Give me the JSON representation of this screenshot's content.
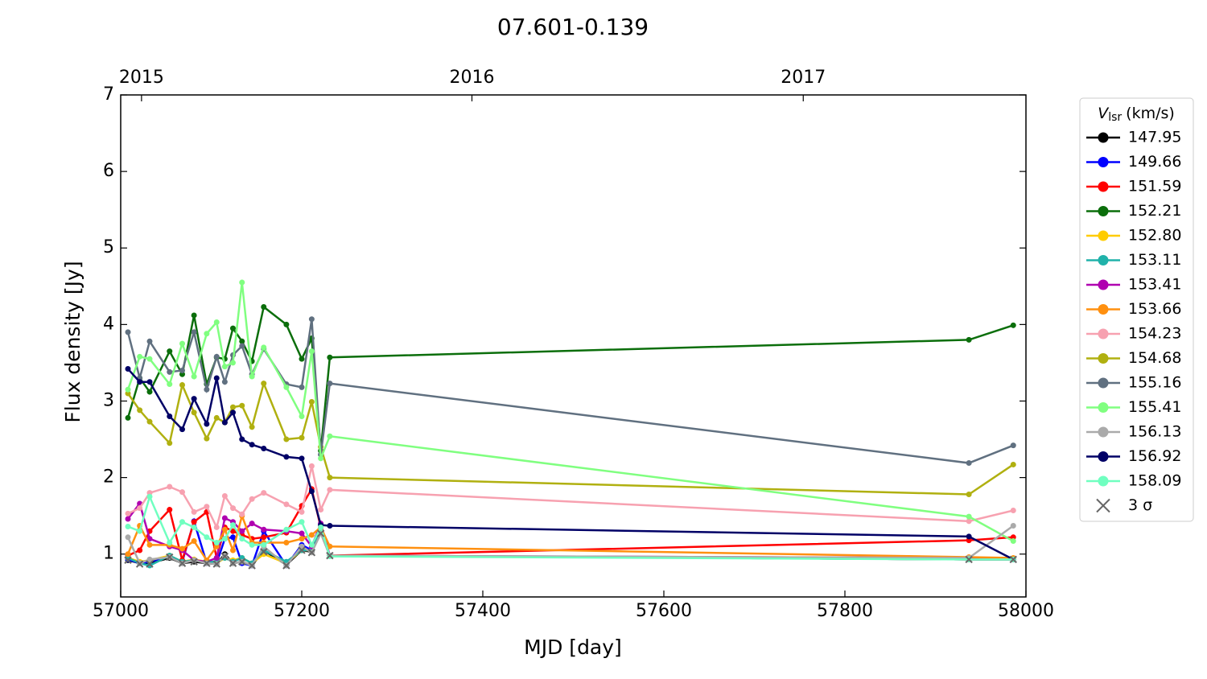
{
  "chart_data": {
    "type": "line",
    "title": "07.601-0.139",
    "xlabel": "MJD [day]",
    "ylabel": "Flux density [Jy]",
    "legend_title": {
      "symbol": "V",
      "subscript": "lsr",
      "unit": "(km/s)"
    },
    "legend": "outside-right",
    "xlim": [
      57000,
      58000
    ],
    "xticks": [
      57000,
      57200,
      57400,
      57600,
      57800,
      58000
    ],
    "ylim": [
      0.44,
      7
    ],
    "yticks": [
      1,
      2,
      3,
      4,
      5,
      6,
      7
    ],
    "x2ticks": [
      {
        "value": 57023,
        "label": "2015"
      },
      {
        "value": 57388,
        "label": "2016"
      },
      {
        "value": 57754,
        "label": "2017"
      }
    ],
    "x": [
      57008,
      57021,
      57032,
      57054,
      57068,
      57081,
      57095,
      57106,
      57115,
      57124,
      57134,
      57145,
      57158,
      57183,
      57200,
      57211,
      57221,
      57231,
      57937,
      57986
    ],
    "series": [
      {
        "name": "147.95",
        "color": "#000000",
        "values": [
          0.92,
          0.88,
          0.88,
          0.95,
          0.88,
          0.9,
          0.88,
          0.87,
          1.0,
          0.88,
          0.9,
          0.85,
          1.05,
          0.86,
          1.05,
          1.03,
          1.28,
          0.98,
          0.93,
          0.93
        ]
      },
      {
        "name": "149.66",
        "color": "#0000ff",
        "values": [
          0.93,
          0.88,
          0.9,
          0.97,
          0.9,
          1.43,
          0.88,
          0.88,
          1.2,
          1.22,
          0.88,
          0.85,
          1.3,
          0.85,
          1.12,
          1.05,
          1.3,
          0.98,
          0.93,
          0.93
        ]
      },
      {
        "name": "151.59",
        "color": "#ff0000",
        "values": [
          0.98,
          1.05,
          1.3,
          1.58,
          0.92,
          1.42,
          1.55,
          0.95,
          1.35,
          1.3,
          1.25,
          1.2,
          1.22,
          1.28,
          1.63,
          1.85,
          1.35,
          0.98,
          1.18,
          1.22
        ]
      },
      {
        "name": "152.21",
        "color": "#0b6e0b",
        "values": [
          2.78,
          3.3,
          3.12,
          3.65,
          3.35,
          4.12,
          3.22,
          3.57,
          3.55,
          3.95,
          3.78,
          3.52,
          4.23,
          4.0,
          3.55,
          3.82,
          2.35,
          3.57,
          3.8,
          3.99
        ]
      },
      {
        "name": "152.80",
        "color": "#ffcc00",
        "values": [
          0.95,
          0.9,
          0.92,
          0.98,
          0.9,
          0.93,
          0.9,
          0.88,
          0.95,
          0.92,
          0.95,
          0.88,
          1.0,
          0.88,
          1.05,
          1.05,
          1.3,
          0.98,
          0.93,
          0.93
        ]
      },
      {
        "name": "153.11",
        "color": "#20b2aa",
        "values": [
          0.95,
          0.88,
          0.85,
          0.98,
          0.9,
          0.92,
          0.9,
          0.9,
          0.95,
          0.9,
          0.95,
          0.88,
          1.05,
          0.9,
          1.05,
          1.05,
          1.3,
          0.98,
          0.93,
          0.93
        ]
      },
      {
        "name": "153.41",
        "color": "#b000b0",
        "values": [
          1.46,
          1.66,
          1.2,
          1.1,
          1.05,
          0.92,
          0.9,
          0.95,
          1.47,
          1.42,
          1.3,
          1.4,
          1.32,
          1.3,
          1.27,
          1.1,
          1.4,
          0.98,
          0.95,
          0.94
        ]
      },
      {
        "name": "153.66",
        "color": "#ff9010",
        "values": [
          1.0,
          1.37,
          1.12,
          1.12,
          1.07,
          1.17,
          0.92,
          1.1,
          1.32,
          1.05,
          1.5,
          1.15,
          1.15,
          1.15,
          1.2,
          1.25,
          1.35,
          1.1,
          0.96,
          0.95
        ]
      },
      {
        "name": "154.23",
        "color": "#f7a1b0",
        "values": [
          1.53,
          1.6,
          1.8,
          1.88,
          1.81,
          1.55,
          1.62,
          1.35,
          1.76,
          1.6,
          1.52,
          1.72,
          1.8,
          1.65,
          1.55,
          2.15,
          1.58,
          1.84,
          1.43,
          1.57
        ]
      },
      {
        "name": "154.68",
        "color": "#b0b010",
        "values": [
          3.1,
          2.88,
          2.73,
          2.45,
          3.21,
          2.85,
          2.51,
          2.78,
          2.72,
          2.92,
          2.94,
          2.66,
          3.23,
          2.5,
          2.52,
          2.99,
          2.4,
          2.0,
          1.78,
          2.17
        ]
      },
      {
        "name": "155.16",
        "color": "#607080",
        "values": [
          3.9,
          3.3,
          3.78,
          3.38,
          3.4,
          3.9,
          3.15,
          3.58,
          3.25,
          3.6,
          3.72,
          3.35,
          3.68,
          3.22,
          3.18,
          4.07,
          2.3,
          3.23,
          2.19,
          2.42
        ]
      },
      {
        "name": "155.41",
        "color": "#80ff80",
        "values": [
          3.15,
          3.58,
          3.55,
          3.22,
          3.75,
          3.32,
          3.88,
          4.03,
          3.45,
          3.5,
          4.55,
          3.32,
          3.7,
          3.18,
          2.8,
          3.65,
          2.25,
          2.54,
          1.49,
          1.17
        ]
      },
      {
        "name": "156.13",
        "color": "#aaaaaa",
        "values": [
          1.22,
          0.88,
          0.93,
          0.96,
          0.88,
          0.92,
          0.88,
          0.87,
          0.98,
          0.88,
          0.9,
          0.85,
          1.1,
          0.85,
          1.1,
          1.02,
          1.27,
          0.98,
          0.95,
          1.37
        ]
      },
      {
        "name": "156.92",
        "color": "#000066",
        "values": [
          3.42,
          3.25,
          3.25,
          2.8,
          2.63,
          3.03,
          2.7,
          3.3,
          2.72,
          2.85,
          2.5,
          2.43,
          2.38,
          2.27,
          2.25,
          1.82,
          1.38,
          1.37,
          1.23,
          0.93
        ]
      },
      {
        "name": "158.09",
        "color": "#70ffc0",
        "values": [
          1.36,
          1.3,
          1.75,
          1.15,
          1.42,
          1.35,
          1.22,
          1.15,
          1.2,
          1.38,
          1.2,
          1.12,
          1.12,
          1.32,
          1.42,
          1.12,
          1.35,
          0.97,
          0.93,
          0.93
        ]
      },
      {
        "name": "3 σ",
        "color": "#666666",
        "marker": "x",
        "values": [
          0.92,
          0.87,
          0.87,
          0.96,
          0.88,
          0.9,
          0.88,
          0.87,
          0.97,
          0.88,
          0.9,
          0.85,
          1.03,
          0.85,
          1.05,
          1.02,
          1.27,
          0.98,
          0.93,
          0.93
        ]
      }
    ]
  }
}
